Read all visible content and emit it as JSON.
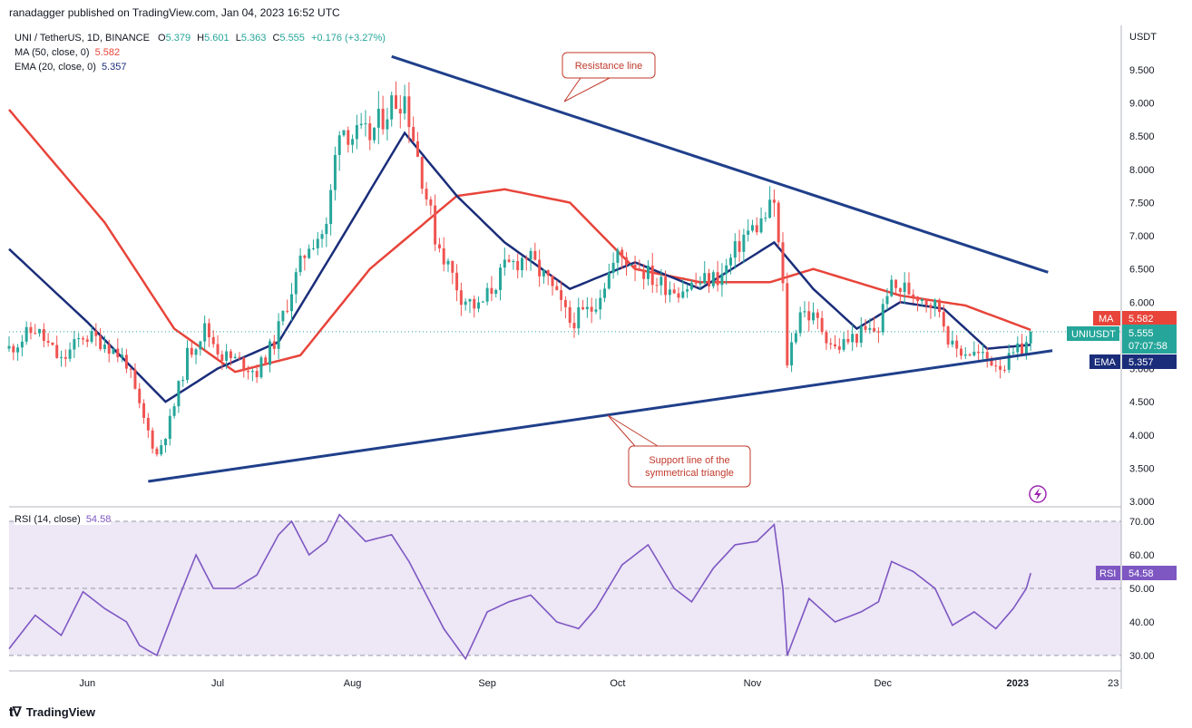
{
  "header": {
    "text": "ranadagger published on TradingView.com, Jan 04, 2023 16:52 UTC"
  },
  "legend": {
    "symbol": "UNI / TetherUS, 1D, BINANCE",
    "ohlc": [
      {
        "k": "O",
        "v": "5.379"
      },
      {
        "k": "H",
        "v": "5.601"
      },
      {
        "k": "L",
        "v": "5.363"
      },
      {
        "k": "C",
        "v": "5.555"
      }
    ],
    "change": "+0.176 (+3.27%)",
    "ma_label": "MA (50, close, 0)",
    "ma_value": "5.582",
    "ema_label": "EMA (20, close, 0)",
    "ema_value": "5.357",
    "rsi_label": "RSI (14, close)",
    "rsi_value": "54.58"
  },
  "footer": {
    "brand": "TradingView",
    "logo": "tv-logo"
  },
  "colors": {
    "bull": "#26a69a",
    "bear": "#ef5350",
    "ma": "#e8443a",
    "ema": "#1a2d7a",
    "trend": "#1f3f8a",
    "rsi": "#7e57c2",
    "rsi_band": "#ede7f6",
    "annot": "#c0392b"
  },
  "chart_data": [
    {
      "type": "candlestick",
      "title": "UNI / TetherUS, 1D, BINANCE",
      "ylabel": "USDT",
      "ylim": [
        3.0,
        10.0
      ],
      "y_ticks": [
        "9.500",
        "9.000",
        "8.500",
        "8.000",
        "7.500",
        "7.000",
        "6.500",
        "6.000",
        "5.500",
        "5.000",
        "4.500",
        "4.000",
        "3.500",
        "3.000"
      ],
      "x_ticks": [
        "Jun",
        "Jul",
        "Aug",
        "Sep",
        "Oct",
        "Nov",
        "Dec",
        "2023",
        "23"
      ],
      "last": {
        "close": "5.555",
        "countdown": "07:07:58",
        "ma": "5.582",
        "ema": "5.357",
        "symbol": "UNIUSDT"
      },
      "anchors": [
        [
          "2022-05-14",
          5.3
        ],
        [
          "2022-05-20",
          5.6
        ],
        [
          "2022-05-26",
          5.1
        ],
        [
          "2022-05-31",
          5.5
        ],
        [
          "2022-06-05",
          5.4
        ],
        [
          "2022-06-10",
          5.1
        ],
        [
          "2022-06-13",
          4.4
        ],
        [
          "2022-06-17",
          3.7
        ],
        [
          "2022-06-20",
          4.2
        ],
        [
          "2022-06-24",
          5.2
        ],
        [
          "2022-06-28",
          5.6
        ],
        [
          "2022-07-02",
          5.2
        ],
        [
          "2022-07-06",
          5.1
        ],
        [
          "2022-07-10",
          4.95
        ],
        [
          "2022-07-14",
          5.4
        ],
        [
          "2022-07-18",
          6.2
        ],
        [
          "2022-07-22",
          6.9
        ],
        [
          "2022-07-26",
          7.1
        ],
        [
          "2022-07-29",
          8.7
        ],
        [
          "2022-08-01",
          8.5
        ],
        [
          "2022-08-05",
          8.5
        ],
        [
          "2022-08-10",
          9.0
        ],
        [
          "2022-08-13",
          9.1
        ],
        [
          "2022-08-16",
          8.2
        ],
        [
          "2022-08-20",
          7.0
        ],
        [
          "2022-08-26",
          6.1
        ],
        [
          "2022-08-30",
          5.9
        ],
        [
          "2022-09-05",
          6.5
        ],
        [
          "2022-09-10",
          6.7
        ],
        [
          "2022-09-15",
          6.3
        ],
        [
          "2022-09-20",
          5.7
        ],
        [
          "2022-09-25",
          5.9
        ],
        [
          "2022-10-01",
          6.7
        ],
        [
          "2022-10-05",
          6.6
        ],
        [
          "2022-10-10",
          6.3
        ],
        [
          "2022-10-15",
          6.2
        ],
        [
          "2022-10-20",
          6.3
        ],
        [
          "2022-10-25",
          6.4
        ],
        [
          "2022-10-30",
          7.0
        ],
        [
          "2022-11-03",
          7.2
        ],
        [
          "2022-11-06",
          7.5
        ],
        [
          "2022-11-08",
          6.2
        ],
        [
          "2022-11-09",
          5.1
        ],
        [
          "2022-11-12",
          5.9
        ],
        [
          "2022-11-16",
          5.7
        ],
        [
          "2022-11-20",
          5.3
        ],
        [
          "2022-11-25",
          5.5
        ],
        [
          "2022-11-30",
          5.6
        ],
        [
          "2022-12-02",
          6.2
        ],
        [
          "2022-12-06",
          6.2
        ],
        [
          "2022-12-10",
          6.1
        ],
        [
          "2022-12-14",
          5.9
        ],
        [
          "2022-12-17",
          5.3
        ],
        [
          "2022-12-21",
          5.25
        ],
        [
          "2022-12-25",
          5.15
        ],
        [
          "2022-12-29",
          5.05
        ],
        [
          "2023-01-01",
          5.25
        ],
        [
          "2023-01-03",
          5.379
        ],
        [
          "2023-01-04",
          5.555
        ]
      ],
      "indicator_anchors": {
        "ma": [
          [
            "2022-05-14",
            8.9
          ],
          [
            "2022-06-05",
            7.2
          ],
          [
            "2022-06-21",
            5.6
          ],
          [
            "2022-07-05",
            4.95
          ],
          [
            "2022-07-20",
            5.2
          ],
          [
            "2022-08-05",
            6.5
          ],
          [
            "2022-08-25",
            7.6
          ],
          [
            "2022-09-05",
            7.7
          ],
          [
            "2022-09-20",
            7.5
          ],
          [
            "2022-10-05",
            6.5
          ],
          [
            "2022-10-20",
            6.3
          ],
          [
            "2022-11-05",
            6.3
          ],
          [
            "2022-11-15",
            6.5
          ],
          [
            "2022-12-05",
            6.1
          ],
          [
            "2022-12-20",
            5.95
          ],
          [
            "2023-01-04",
            5.582
          ]
        ],
        "ema": [
          [
            "2022-05-14",
            6.8
          ],
          [
            "2022-06-01",
            5.7
          ],
          [
            "2022-06-19",
            4.5
          ],
          [
            "2022-07-01",
            5.0
          ],
          [
            "2022-07-15",
            5.4
          ],
          [
            "2022-07-28",
            6.8
          ],
          [
            "2022-08-13",
            8.55
          ],
          [
            "2022-08-25",
            7.6
          ],
          [
            "2022-09-05",
            6.9
          ],
          [
            "2022-09-20",
            6.2
          ],
          [
            "2022-10-05",
            6.6
          ],
          [
            "2022-10-20",
            6.2
          ],
          [
            "2022-11-06",
            6.9
          ],
          [
            "2022-11-15",
            6.2
          ],
          [
            "2022-11-25",
            5.6
          ],
          [
            "2022-12-05",
            6.0
          ],
          [
            "2022-12-15",
            5.9
          ],
          [
            "2022-12-25",
            5.3
          ],
          [
            "2023-01-04",
            5.357
          ]
        ]
      },
      "lines": [
        {
          "name": "resistance",
          "from": [
            "2022-08-10",
            9.7
          ],
          "to": [
            "2023-01-08",
            6.45
          ]
        },
        {
          "name": "support",
          "from": [
            "2022-06-15",
            3.3
          ],
          "to": [
            "2023-01-09",
            5.27
          ]
        }
      ],
      "annotations": [
        {
          "text": [
            "Resistance line"
          ]
        },
        {
          "text": [
            "Support line of the",
            "symmetrical triangle"
          ]
        }
      ]
    },
    {
      "type": "line",
      "title": "RSI (14, close)",
      "ylim": [
        27,
        72
      ],
      "y_ticks": [
        "70.00",
        "60.00",
        "50.00",
        "40.00",
        "30.00"
      ],
      "bands": [
        30,
        50,
        70
      ],
      "last": {
        "value": "54.58"
      },
      "anchors": [
        [
          "2022-05-14",
          32
        ],
        [
          "2022-05-20",
          42
        ],
        [
          "2022-05-26",
          36
        ],
        [
          "2022-05-31",
          49
        ],
        [
          "2022-06-05",
          44
        ],
        [
          "2022-06-10",
          40
        ],
        [
          "2022-06-13",
          33
        ],
        [
          "2022-06-17",
          30
        ],
        [
          "2022-06-22",
          47
        ],
        [
          "2022-06-26",
          60
        ],
        [
          "2022-06-30",
          50
        ],
        [
          "2022-07-05",
          50
        ],
        [
          "2022-07-10",
          54
        ],
        [
          "2022-07-15",
          66
        ],
        [
          "2022-07-18",
          70
        ],
        [
          "2022-07-22",
          60
        ],
        [
          "2022-07-26",
          64
        ],
        [
          "2022-07-29",
          72
        ],
        [
          "2022-08-04",
          64
        ],
        [
          "2022-08-10",
          66
        ],
        [
          "2022-08-14",
          58
        ],
        [
          "2022-08-18",
          48
        ],
        [
          "2022-08-22",
          38
        ],
        [
          "2022-08-27",
          29
        ],
        [
          "2022-09-01",
          43
        ],
        [
          "2022-09-06",
          46
        ],
        [
          "2022-09-11",
          48
        ],
        [
          "2022-09-17",
          40
        ],
        [
          "2022-09-22",
          38
        ],
        [
          "2022-09-26",
          44
        ],
        [
          "2022-10-02",
          57
        ],
        [
          "2022-10-08",
          63
        ],
        [
          "2022-10-14",
          50
        ],
        [
          "2022-10-18",
          46
        ],
        [
          "2022-10-23",
          56
        ],
        [
          "2022-10-28",
          63
        ],
        [
          "2022-11-02",
          64
        ],
        [
          "2022-11-06",
          69
        ],
        [
          "2022-11-08",
          50
        ],
        [
          "2022-11-09",
          30
        ],
        [
          "2022-11-14",
          47
        ],
        [
          "2022-11-20",
          40
        ],
        [
          "2022-11-26",
          43
        ],
        [
          "2022-11-30",
          46
        ],
        [
          "2022-12-03",
          58
        ],
        [
          "2022-12-08",
          55
        ],
        [
          "2022-12-13",
          50
        ],
        [
          "2022-12-17",
          39
        ],
        [
          "2022-12-22",
          43
        ],
        [
          "2022-12-27",
          38
        ],
        [
          "2022-12-31",
          44
        ],
        [
          "2023-01-03",
          50
        ],
        [
          "2023-01-04",
          54.58
        ]
      ]
    }
  ]
}
